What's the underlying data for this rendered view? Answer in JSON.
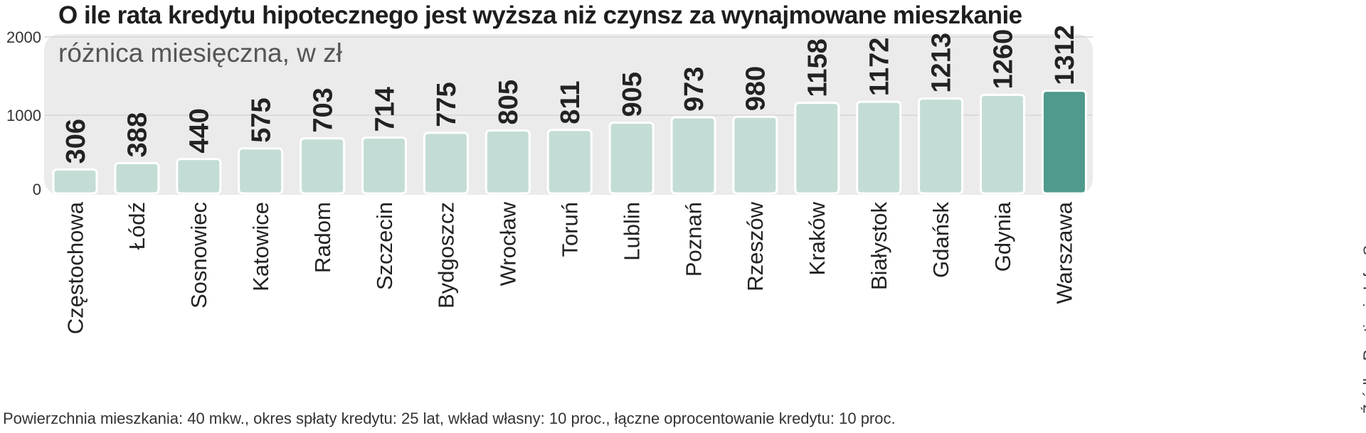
{
  "chart_data": {
    "type": "bar",
    "title": "O ile rata kredytu hipotecznego jest wyższa niż czynsz za wynajmowane mieszkanie",
    "subtitle": "różnica miesięczna, w zł",
    "categories": [
      "Częstochowa",
      "Łódź",
      "Sosnowiec",
      "Katowice",
      "Radom",
      "Szczecin",
      "Bydgoszcz",
      "Wrocław",
      "Toruń",
      "Lublin",
      "Poznań",
      "Rzeszów",
      "Kraków",
      "Białystok",
      "Gdańsk",
      "Gdynia",
      "Warszawa"
    ],
    "values": [
      306,
      388,
      440,
      575,
      703,
      714,
      775,
      805,
      811,
      905,
      973,
      980,
      1158,
      1172,
      1213,
      1260,
      1312
    ],
    "ylim": [
      0,
      2000
    ],
    "yticks": [
      "0",
      "1000",
      "2000"
    ],
    "grid": true,
    "legend": "none",
    "footnote": "Powierzchnia mieszkania: 40 mkw., okres spłaty kredytu: 25 lat, wkład własny: 10 proc., łączne oprocentowanie kredytu: 10 proc.",
    "source": "Źródło: Rentier.io   Info: S",
    "colors": {
      "bar": "#c3ddd6",
      "bar_highlight": "#4f9a8c",
      "bar_stroke": "#ffffff",
      "plot_bg": "#ebebeb",
      "value_label": "#222222",
      "category_label": "#222222"
    }
  }
}
